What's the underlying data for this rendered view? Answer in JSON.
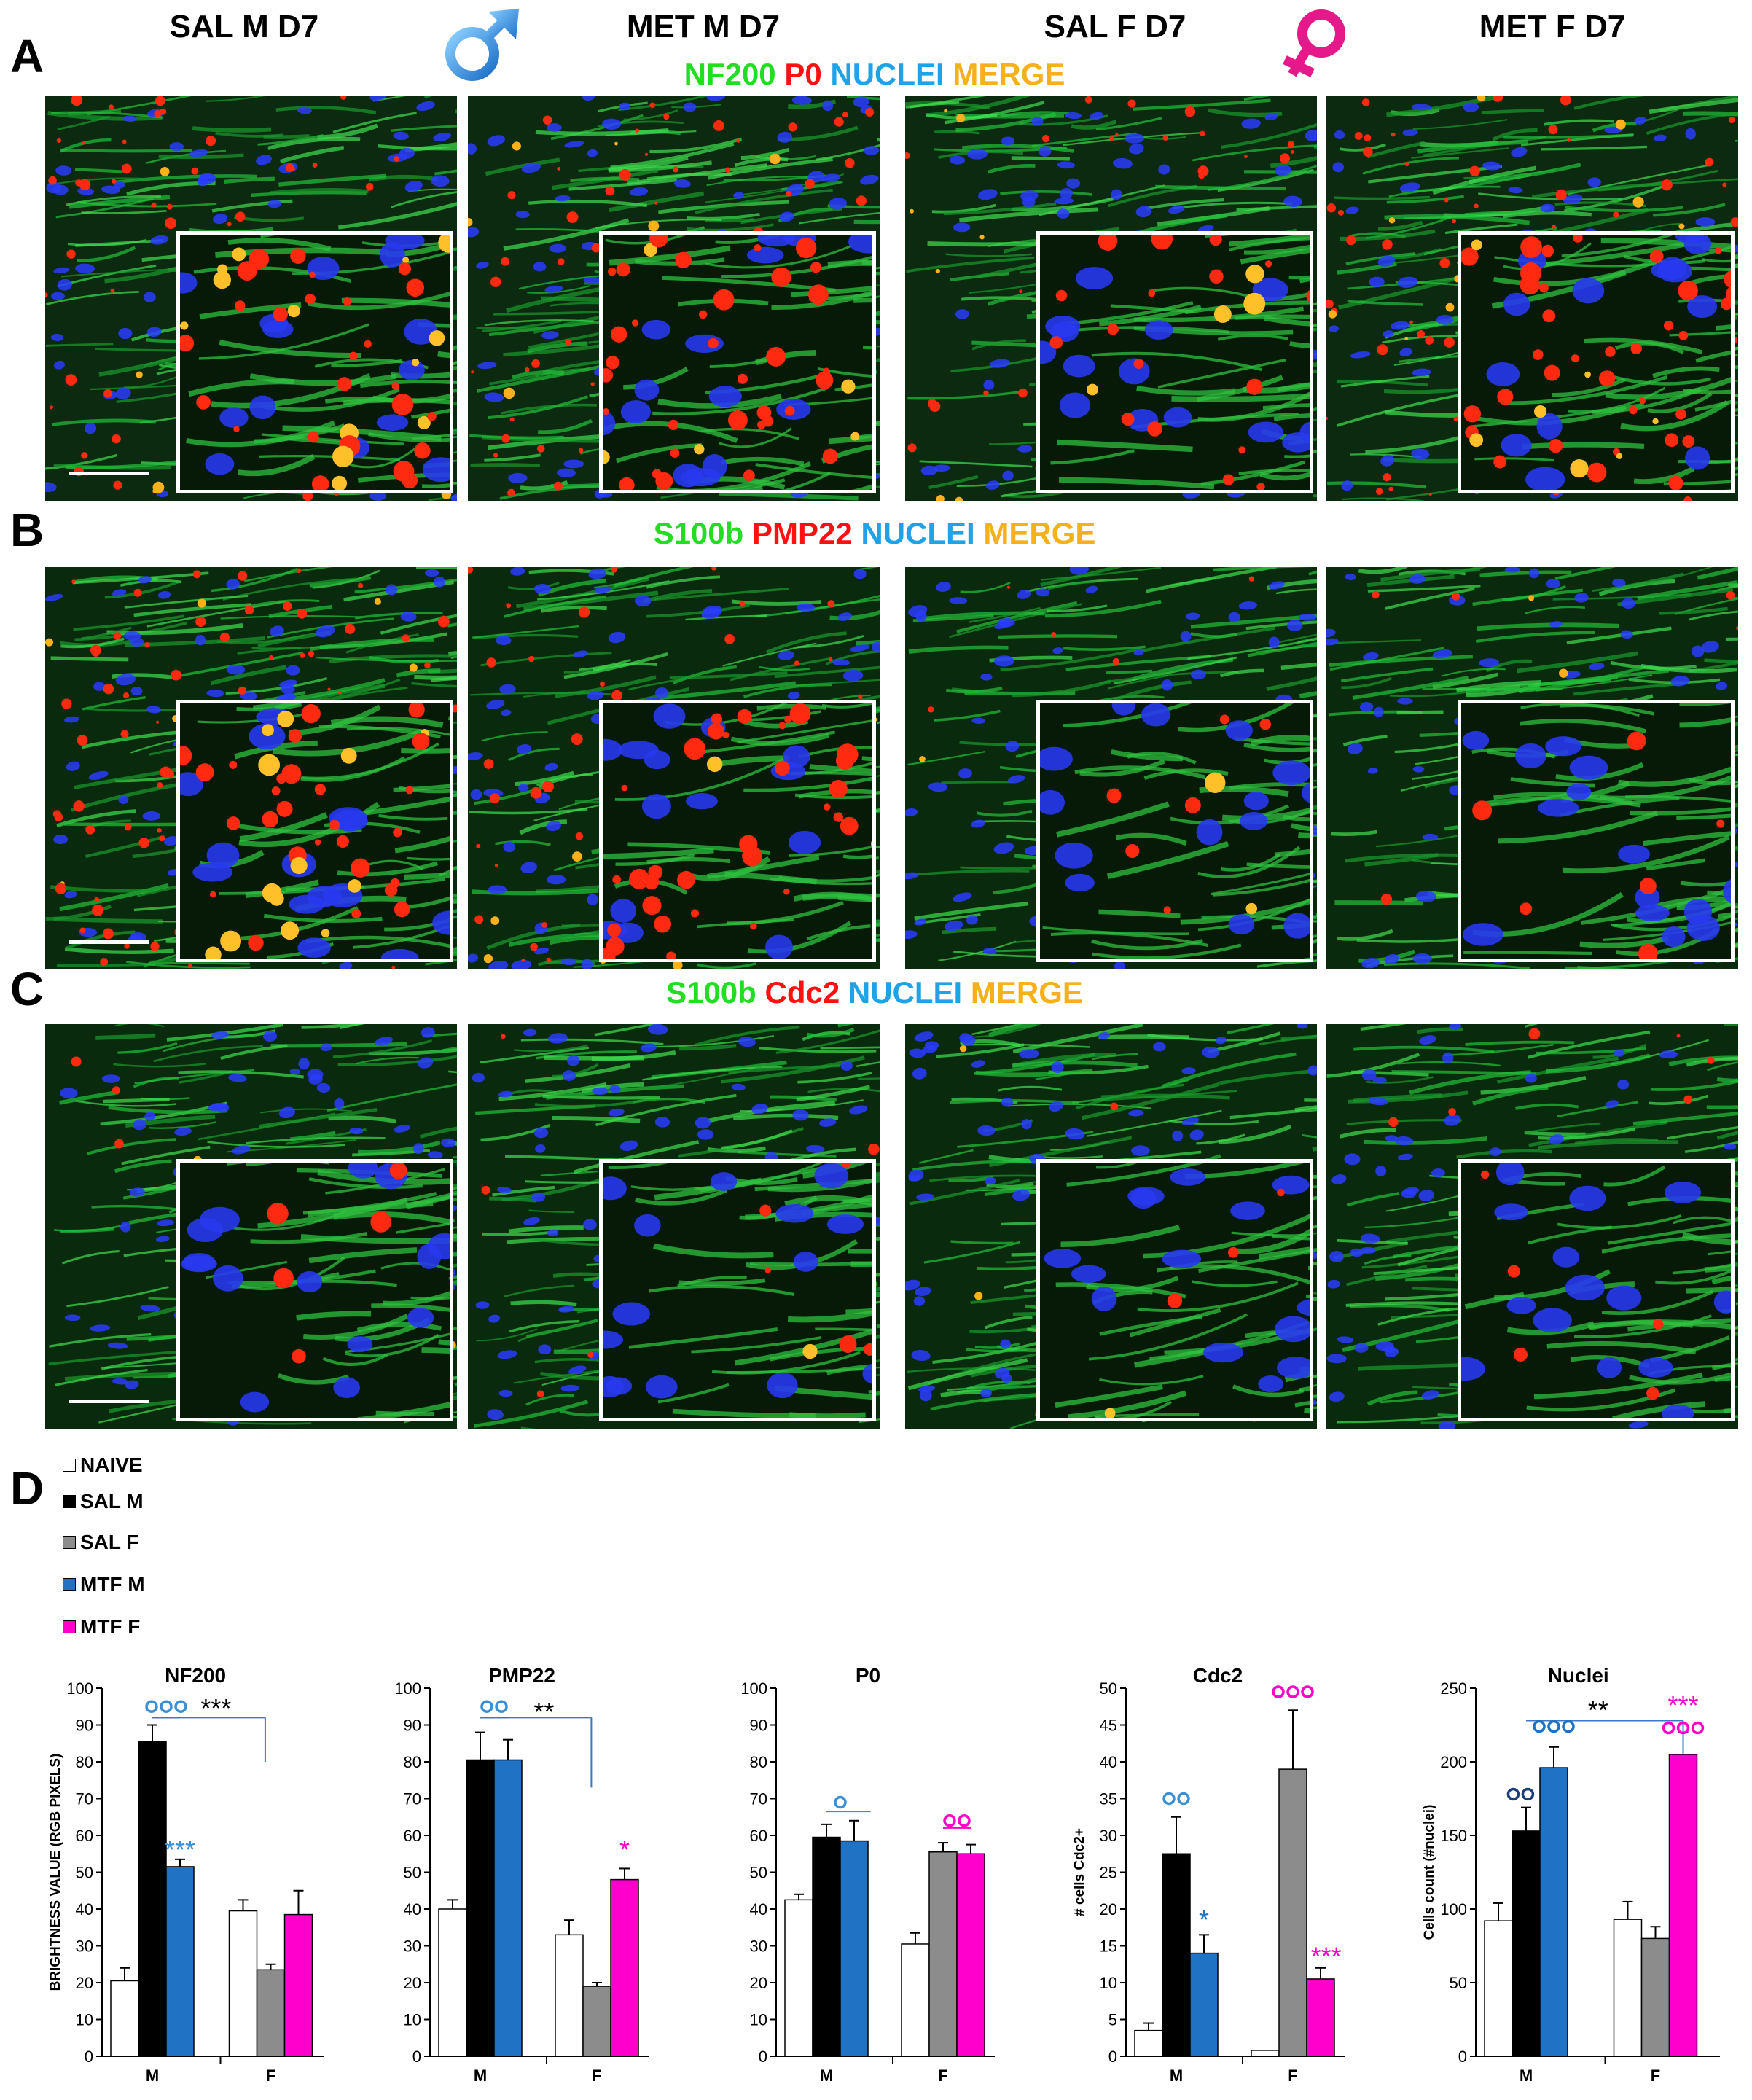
{
  "columns": [
    "SAL M D7",
    "MET M D7",
    "SAL F D7",
    "MET F D7"
  ],
  "panels": {
    "a": {
      "letter": "A",
      "stains": [
        {
          "text": "NF200",
          "color": "#22dd22"
        },
        {
          "text": "P0",
          "color": "#ff1111"
        },
        {
          "text": "NUCLEI",
          "color": "#1fa3e6"
        },
        {
          "text": "MERGE",
          "color": "#f5b01a"
        }
      ]
    },
    "b": {
      "letter": "B",
      "stains": [
        {
          "text": "S100b",
          "color": "#22dd22"
        },
        {
          "text": "PMP22",
          "color": "#ff1111"
        },
        {
          "text": "NUCLEI",
          "color": "#1fa3e6"
        },
        {
          "text": "MERGE",
          "color": "#f5b01a"
        }
      ]
    },
    "c": {
      "letter": "C",
      "stains": [
        {
          "text": "S100b",
          "color": "#22dd22"
        },
        {
          "text": "Cdc2",
          "color": "#ff1111"
        },
        {
          "text": "NUCLEI",
          "color": "#1fa3e6"
        },
        {
          "text": "MERGE",
          "color": "#f5b01a"
        }
      ]
    },
    "d": {
      "letter": "D"
    }
  },
  "symbols": {
    "male_color": "#2f8fde",
    "female_color": "#e6198a"
  },
  "legend": [
    {
      "label": "NAIVE",
      "color": "#ffffff"
    },
    {
      "label": "SAL M",
      "color": "#000000"
    },
    {
      "label": "SAL F",
      "color": "#8c8c8c"
    },
    {
      "label": "MTF M",
      "color": "#1f72c4"
    },
    {
      "label": "MTF F",
      "color": "#ff00cc"
    }
  ],
  "chart_data": [
    {
      "type": "bar",
      "title": "NF200",
      "ylabel": "BRIGHTNESS VALUE (RGB PIXELS)",
      "ylim": [
        0,
        100
      ],
      "yticks": [
        0,
        10,
        20,
        30,
        40,
        50,
        60,
        70,
        80,
        90,
        100
      ],
      "categories": [
        "M",
        "F"
      ],
      "groups": [
        {
          "bars": [
            {
              "value": 20.5,
              "err": 3.5,
              "color": "#ffffff"
            },
            {
              "value": 85.5,
              "err": 4.5,
              "color": "#000000"
            },
            {
              "value": 51.5,
              "err": 2,
              "color": "#1f72c4"
            }
          ]
        },
        {
          "bars": [
            {
              "value": 39.5,
              "err": 3,
              "color": "#ffffff"
            },
            {
              "value": 23.5,
              "err": 1.5,
              "color": "#8c8c8c"
            },
            {
              "value": 38.5,
              "err": 6.5,
              "color": "#ff00cc"
            }
          ]
        }
      ],
      "annotations": [
        {
          "text": "***",
          "color": "#3a8fd6",
          "g": 0,
          "b": 2,
          "y": 56
        },
        {
          "text": "ooo",
          "color": "#3a8fd6",
          "g": 0,
          "b": 1.5,
          "y": 95,
          "kind": "circles"
        },
        {
          "text": "***",
          "color": "#000000",
          "g": 0,
          "b": 3.3,
          "y": 94.5
        }
      ],
      "brackets": [
        {
          "from": [
            0,
            1
          ],
          "to": [
            0,
            2
          ],
          "y": 92,
          "drop": false
        },
        {
          "from": [
            0,
            1
          ],
          "to": [
            1,
            0.8
          ],
          "y": 92,
          "drop": true,
          "dropTo": 80
        }
      ]
    },
    {
      "type": "bar",
      "title": "PMP22",
      "ylabel": "",
      "ylim": [
        0,
        100
      ],
      "yticks": [
        0,
        10,
        20,
        30,
        40,
        50,
        60,
        70,
        80,
        90,
        100
      ],
      "categories": [
        "M",
        "F"
      ],
      "groups": [
        {
          "bars": [
            {
              "value": 40,
              "err": 2.5,
              "color": "#ffffff"
            },
            {
              "value": 80.5,
              "err": 7.5,
              "color": "#000000"
            },
            {
              "value": 80.5,
              "err": 5.5,
              "color": "#1f72c4"
            }
          ]
        },
        {
          "bars": [
            {
              "value": 33,
              "err": 4,
              "color": "#ffffff"
            },
            {
              "value": 19,
              "err": 1,
              "color": "#8c8c8c"
            },
            {
              "value": 48,
              "err": 3,
              "color": "#ff00cc"
            }
          ]
        }
      ],
      "annotations": [
        {
          "text": "oo",
          "color": "#3a8fd6",
          "g": 0,
          "b": 1.5,
          "y": 95,
          "kind": "circles"
        },
        {
          "text": "**",
          "color": "#000000",
          "g": 0,
          "b": 3.3,
          "y": 93.5
        },
        {
          "text": "*",
          "color": "#ff00cc",
          "g": 1,
          "b": 2,
          "y": 56
        }
      ],
      "brackets": [
        {
          "from": [
            0,
            1
          ],
          "to": [
            0,
            2
          ],
          "y": 92,
          "drop": false
        },
        {
          "from": [
            0,
            1
          ],
          "to": [
            1,
            0.8
          ],
          "y": 92,
          "drop": true,
          "dropTo": 73
        }
      ]
    },
    {
      "type": "bar",
      "title": "P0",
      "ylabel": "",
      "ylim": [
        0,
        100
      ],
      "yticks": [
        0,
        10,
        20,
        30,
        40,
        50,
        60,
        70,
        80,
        90,
        100
      ],
      "categories": [
        "M",
        "F"
      ],
      "groups": [
        {
          "bars": [
            {
              "value": 42.5,
              "err": 1.5,
              "color": "#ffffff"
            },
            {
              "value": 59.5,
              "err": 3.5,
              "color": "#000000"
            },
            {
              "value": 58.5,
              "err": 5.5,
              "color": "#1f72c4"
            }
          ]
        },
        {
          "bars": [
            {
              "value": 30.5,
              "err": 3,
              "color": "#ffffff"
            },
            {
              "value": 55.5,
              "err": 2.5,
              "color": "#8c8c8c"
            },
            {
              "value": 55,
              "err": 2.5,
              "color": "#ff00cc"
            }
          ]
        }
      ],
      "annotations": [
        {
          "text": "o",
          "color": "#3a8fd6",
          "g": 0,
          "b": 1.5,
          "y": 69,
          "kind": "circles"
        },
        {
          "text": "oo",
          "color": "#ff00cc",
          "g": 1,
          "b": 1.5,
          "y": 64,
          "kind": "circles"
        }
      ],
      "brackets": [
        {
          "from": [
            0,
            1
          ],
          "to": [
            0,
            2.6
          ],
          "y": 66.5,
          "drop": false,
          "color": "#3a8fd6"
        },
        {
          "from": [
            1,
            1
          ],
          "to": [
            1,
            2
          ],
          "y": 62,
          "drop": false,
          "color": "#ff00cc"
        }
      ]
    },
    {
      "type": "bar",
      "title": "Cdc2",
      "ylabel": "# cells Cdc2+",
      "ylim": [
        0,
        50
      ],
      "yticks": [
        0,
        5,
        10,
        15,
        20,
        25,
        30,
        35,
        40,
        45,
        50
      ],
      "categories": [
        "M",
        "F"
      ],
      "groups": [
        {
          "bars": [
            {
              "value": 3.5,
              "err": 1,
              "color": "#ffffff"
            },
            {
              "value": 27.5,
              "err": 5,
              "color": "#000000"
            },
            {
              "value": 14,
              "err": 2.5,
              "color": "#1f72c4"
            }
          ]
        },
        {
          "bars": [
            {
              "value": 0.8,
              "err": 0,
              "color": "#ffffff"
            },
            {
              "value": 39,
              "err": 8,
              "color": "#8c8c8c"
            },
            {
              "value": 10.5,
              "err": 1.5,
              "color": "#ff00cc"
            }
          ]
        }
      ],
      "annotations": [
        {
          "text": "oo",
          "color": "#3a8fd6",
          "g": 0,
          "b": 1,
          "y": 35,
          "kind": "circles"
        },
        {
          "text": "*",
          "color": "#1f72c4",
          "g": 0,
          "b": 2,
          "y": 18.5
        },
        {
          "text": "ooo",
          "color": "#ff00cc",
          "g": 1,
          "b": 1,
          "y": 49.5,
          "kind": "circles"
        },
        {
          "text": "***",
          "color": "#ff00cc",
          "g": 1,
          "b": 2.2,
          "y": 13.5
        }
      ],
      "brackets": []
    },
    {
      "type": "bar",
      "title": "Nuclei",
      "ylabel": "Cells count (#nuclei)",
      "ylim": [
        0,
        250
      ],
      "yticks": [
        0,
        50,
        100,
        150,
        200,
        250
      ],
      "categories": [
        "M",
        "F"
      ],
      "groups": [
        {
          "bars": [
            {
              "value": 92,
              "err": 12,
              "color": "#ffffff"
            },
            {
              "value": 153,
              "err": 16,
              "color": "#000000"
            },
            {
              "value": 196,
              "err": 14,
              "color": "#1f72c4"
            }
          ]
        },
        {
          "bars": [
            {
              "value": 93,
              "err": 12,
              "color": "#ffffff"
            },
            {
              "value": 80,
              "err": 8,
              "color": "#8c8c8c"
            },
            {
              "value": 205,
              "err": 15,
              "color": "#ff00cc"
            }
          ]
        }
      ],
      "annotations": [
        {
          "text": "oo",
          "color": "#1b3f7a",
          "g": 0,
          "b": 0.8,
          "y": 178,
          "kind": "circles"
        },
        {
          "text": "ooo",
          "color": "#1f72c4",
          "g": 0,
          "b": 2,
          "y": 224,
          "kind": "circles"
        },
        {
          "text": "**",
          "color": "#000000",
          "g": 0,
          "b": 3.6,
          "y": 235
        },
        {
          "text": "***",
          "color": "#ff00cc",
          "g": 1,
          "b": 2,
          "y": 238
        },
        {
          "text": "ooo",
          "color": "#ff00cc",
          "g": 1,
          "b": 2,
          "y": 223,
          "kind": "circles"
        }
      ],
      "brackets": [
        {
          "from": [
            0,
            1
          ],
          "to": [
            1,
            2
          ],
          "y": 228,
          "drop": true,
          "dropTo": 205
        }
      ]
    }
  ]
}
